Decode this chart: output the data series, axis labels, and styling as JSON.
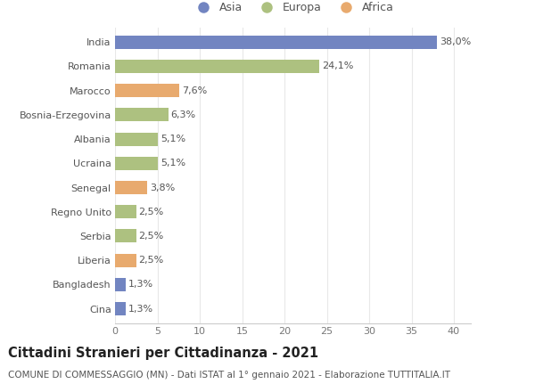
{
  "countries": [
    "India",
    "Romania",
    "Marocco",
    "Bosnia-Erzegovina",
    "Albania",
    "Ucraina",
    "Senegal",
    "Regno Unito",
    "Serbia",
    "Liberia",
    "Bangladesh",
    "Cina"
  ],
  "values": [
    38.0,
    24.1,
    7.6,
    6.3,
    5.1,
    5.1,
    3.8,
    2.5,
    2.5,
    2.5,
    1.3,
    1.3
  ],
  "labels": [
    "38,0%",
    "24,1%",
    "7,6%",
    "6,3%",
    "5,1%",
    "5,1%",
    "3,8%",
    "2,5%",
    "2,5%",
    "2,5%",
    "1,3%",
    "1,3%"
  ],
  "continents": [
    "Asia",
    "Europa",
    "Africa",
    "Europa",
    "Europa",
    "Europa",
    "Africa",
    "Europa",
    "Europa",
    "Africa",
    "Asia",
    "Asia"
  ],
  "colors": {
    "Asia": "#7285c1",
    "Europa": "#adc180",
    "Africa": "#e8aa6e"
  },
  "xlim": [
    0,
    42
  ],
  "xticks": [
    0,
    5,
    10,
    15,
    20,
    25,
    30,
    35,
    40
  ],
  "title": "Cittadini Stranieri per Cittadinanza - 2021",
  "subtitle": "COMUNE DI COMMESSAGGIO (MN) - Dati ISTAT al 1° gennaio 2021 - Elaborazione TUTTITALIA.IT",
  "background_color": "#ffffff",
  "grid_color": "#e8e8e8",
  "bar_height": 0.55,
  "title_fontsize": 10.5,
  "subtitle_fontsize": 7.5,
  "label_fontsize": 8,
  "tick_fontsize": 8,
  "legend_fontsize": 9
}
